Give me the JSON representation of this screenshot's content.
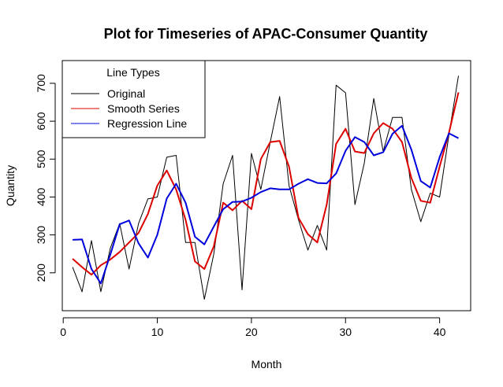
{
  "chart_data": {
    "type": "line",
    "title": "Plot for Timeseries of APAC-Consumer Quantity",
    "xlabel": "Month",
    "ylabel": "Quantity",
    "xlim": [
      -0.1,
      43.3
    ],
    "ylim": [
      100,
      760
    ],
    "x_ticks": [
      0,
      10,
      20,
      30,
      40
    ],
    "y_ticks": [
      200,
      300,
      400,
      500,
      600,
      700
    ],
    "grid": false,
    "legend": {
      "title": "Line Types",
      "position": "top-left"
    },
    "x": [
      1,
      2,
      3,
      4,
      5,
      6,
      7,
      8,
      9,
      10,
      11,
      12,
      13,
      14,
      15,
      16,
      17,
      18,
      19,
      20,
      21,
      22,
      23,
      24,
      25,
      26,
      27,
      28,
      29,
      30,
      31,
      32,
      33,
      34,
      35,
      36,
      37,
      38,
      39,
      40,
      41,
      42
    ],
    "series": [
      {
        "name": "Original",
        "color": "#000000",
        "width": 1,
        "values": [
          215,
          150,
          285,
          150,
          265,
          330,
          210,
          330,
          395,
          400,
          505,
          510,
          280,
          280,
          130,
          250,
          435,
          510,
          155,
          515,
          420,
          545,
          665,
          430,
          340,
          260,
          325,
          260,
          695,
          675,
          380,
          490,
          660,
          520,
          610,
          610,
          420,
          335,
          410,
          400,
          565,
          720
        ]
      },
      {
        "name": "Smooth Series",
        "color": "#dd0000",
        "width": 2,
        "values": [
          237,
          215,
          195,
          220,
          235,
          255,
          280,
          305,
          355,
          430,
          470,
          420,
          340,
          230,
          210,
          270,
          385,
          365,
          390,
          368,
          500,
          545,
          548,
          480,
          345,
          302,
          280,
          380,
          540,
          580,
          520,
          516,
          568,
          595,
          580,
          545,
          450,
          390,
          385,
          480,
          570,
          676
        ]
      },
      {
        "name": "Regression Line",
        "color": "#0000dd",
        "width": 2,
        "values": [
          287,
          288,
          210,
          172,
          248,
          328,
          338,
          278,
          240,
          300,
          396,
          435,
          385,
          295,
          275,
          322,
          368,
          387,
          388,
          398,
          413,
          423,
          420,
          420,
          435,
          447,
          437,
          436,
          462,
          522,
          558,
          545,
          510,
          518,
          567,
          588,
          525,
          442,
          425,
          505,
          568,
          555
        ]
      }
    ]
  }
}
